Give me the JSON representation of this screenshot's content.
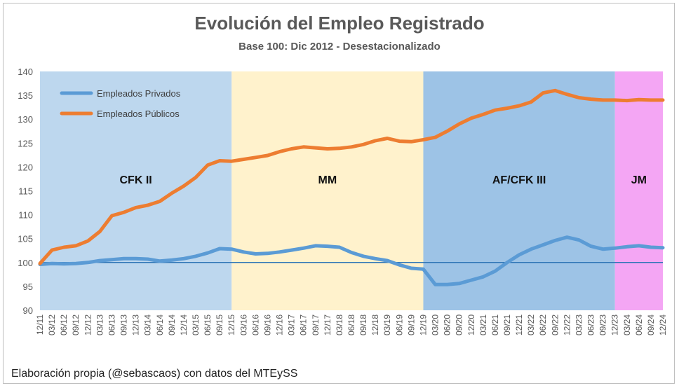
{
  "chart_data": {
    "type": "line",
    "title": "Evolución del Empleo Registrado",
    "subtitle": "Base 100: Dic 2012 - Desestacionalizado",
    "footer": "Elaboración propia (@sebascaos) con datos del MTEySS",
    "ylim": [
      90,
      140
    ],
    "y_ticks": [
      "140",
      "135",
      "130",
      "125",
      "120",
      "115",
      "110",
      "105",
      "100",
      "95",
      "90"
    ],
    "x_tick_labels": [
      "12/11",
      "03/12",
      "06/12",
      "09/12",
      "12/12",
      "03/13",
      "06/13",
      "09/13",
      "12/13",
      "03/14",
      "06/14",
      "09/14",
      "12/14",
      "03/15",
      "06/15",
      "09/15",
      "12/15",
      "03/16",
      "06/16",
      "09/16",
      "12/16",
      "03/17",
      "06/17",
      "09/17",
      "12/17",
      "03/18",
      "06/18",
      "09/18",
      "12/18",
      "03/19",
      "06/19",
      "09/19",
      "12/19",
      "03/20",
      "06/20",
      "09/20",
      "12/20",
      "03/21",
      "06/21",
      "09/21",
      "12/21",
      "03/22",
      "06/22",
      "09/22",
      "12/22",
      "03/23",
      "06/23",
      "09/23",
      "12/23",
      "03/24",
      "06/24",
      "09/24",
      "12/24"
    ],
    "reference_line": 100,
    "periods": [
      {
        "label": "CFK II",
        "start": "12/11",
        "end": "12/15",
        "color": "#bdd7ee"
      },
      {
        "label": "MM",
        "start": "12/15",
        "end": "12/19",
        "color": "#fff2cc"
      },
      {
        "label": "AF/CFK III",
        "start": "12/19",
        "end": "12/23",
        "color": "#9dc3e6"
      },
      {
        "label": "JM",
        "start": "12/23",
        "end": "12/24",
        "color": "#f4a6f4"
      }
    ],
    "legend_position": "top-left",
    "series": [
      {
        "name": "Empleados Privados",
        "color": "#5b9bd5",
        "values": [
          99.6,
          99.8,
          99.7,
          99.8,
          100.0,
          100.4,
          100.6,
          100.8,
          100.8,
          100.7,
          100.3,
          100.5,
          100.8,
          101.3,
          102.0,
          102.9,
          102.8,
          102.2,
          101.8,
          101.9,
          102.2,
          102.6,
          103.0,
          103.5,
          103.4,
          103.2,
          102.1,
          101.3,
          100.8,
          100.4,
          99.5,
          98.8,
          98.6,
          95.4,
          95.4,
          95.6,
          96.3,
          97.0,
          98.2,
          100.0,
          101.6,
          102.8,
          103.7,
          104.6,
          105.3,
          104.7,
          103.4,
          102.8,
          103.0,
          103.3,
          103.5,
          103.2,
          103.1
        ]
      },
      {
        "name": "Empleados Públicos",
        "color": "#ed7d31",
        "values": [
          99.8,
          102.6,
          103.2,
          103.5,
          104.5,
          106.5,
          109.8,
          110.5,
          111.5,
          112.0,
          112.8,
          114.5,
          116.0,
          117.8,
          120.4,
          121.3,
          121.2,
          121.6,
          122.0,
          122.4,
          123.2,
          123.8,
          124.2,
          124.0,
          123.8,
          123.9,
          124.2,
          124.7,
          125.5,
          126.0,
          125.4,
          125.3,
          125.7,
          126.2,
          127.5,
          129.0,
          130.2,
          131.0,
          131.9,
          132.3,
          132.8,
          133.6,
          135.5,
          136.0,
          135.2,
          134.5,
          134.2,
          134.0,
          134.0,
          133.9,
          134.1,
          134.0,
          134.0
        ]
      }
    ]
  }
}
